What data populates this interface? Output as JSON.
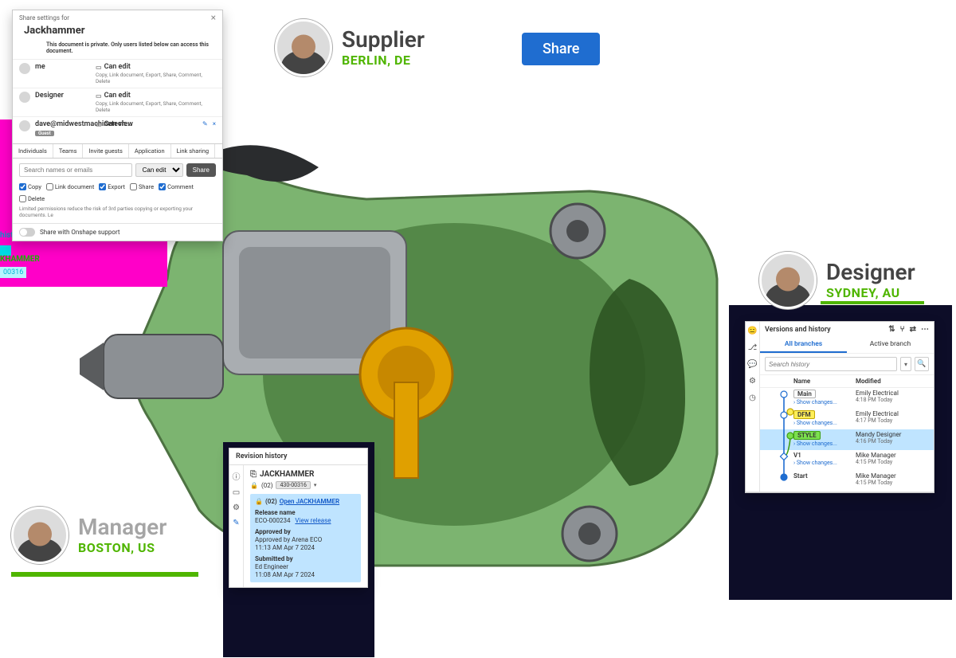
{
  "personas": {
    "supplier": {
      "role": "Supplier",
      "loc": "BERLIN, DE"
    },
    "designer": {
      "role": "Designer",
      "loc": "SYDNEY, AU"
    },
    "manager": {
      "role": "Manager",
      "loc": "BOSTON, US"
    }
  },
  "share_chip": "Share",
  "share_panel": {
    "header": "Share settings for",
    "title": "Jackhammer",
    "subtitle": "This document is private. Only users listed below can access this document.",
    "rows": [
      {
        "name": "me",
        "perm_head": "Can edit",
        "perm_detail": "Copy, Link document, Export, Share, Comment, Delete",
        "has_actions": false,
        "guest": false
      },
      {
        "name": "Designer",
        "perm_head": "Can edit",
        "perm_detail": "Copy, Link document, Export, Share, Comment, Delete",
        "has_actions": false,
        "guest": false
      },
      {
        "name": "dave@midwestmachinetech...",
        "perm_head": "Can view",
        "perm_detail": "",
        "has_actions": true,
        "guest": true
      }
    ],
    "tabs": [
      "Individuals",
      "Teams",
      "Invite guests",
      "Application",
      "Link sharing"
    ],
    "input_placeholder": "Search names or emails",
    "dropdown": "Can edit",
    "share_btn": "Share",
    "checks": [
      {
        "label": "Copy",
        "checked": true
      },
      {
        "label": "Link document",
        "checked": false
      },
      {
        "label": "Export",
        "checked": true
      },
      {
        "label": "Share",
        "checked": false
      },
      {
        "label": "Comment",
        "checked": true
      },
      {
        "label": "Delete",
        "checked": false
      }
    ],
    "note": "Limited permissions reduce the risk of 3rd parties copying or exporting your documents. Le",
    "footer": "Share with Onshape support"
  },
  "left_fragments": {
    "frag1": "history",
    "frag2": "KHAMMER",
    "frag3": "00316"
  },
  "revision": {
    "header": "Revision history",
    "part_name": "JACKHAMMER",
    "rev_prefix": "(02)",
    "rev_badge": "430-00316",
    "open_prefix": "(02)",
    "open_link": "Open JACKHAMMER",
    "release_name_label": "Release name",
    "release_name": "ECO-000234",
    "view_release": "View release",
    "approved_label": "Approved by",
    "approved_by": "Approved by Arena ECO",
    "approved_time": "11:13 AM Apr 7 2024",
    "submitted_label": "Submitted by",
    "submitted_by": "Ed Engineer",
    "submitted_time": "11:08 AM Apr 7 2024"
  },
  "versions": {
    "title": "Versions and history",
    "tabs": {
      "all": "All branches",
      "active": "Active branch"
    },
    "search_placeholder": "Search history",
    "head_name": "Name",
    "head_mod": "Modified",
    "show_changes": "Show changes...",
    "rows": [
      {
        "name": "Main",
        "cls": "boxed",
        "who": "Emily Electrical",
        "when": "4:18 PM Today",
        "hl": false
      },
      {
        "name": "DFM",
        "cls": "yellow",
        "who": "Emily Electrical",
        "when": "4:17 PM Today",
        "hl": false
      },
      {
        "name": "STYLE",
        "cls": "green",
        "who": "Mandy Designer",
        "when": "4:16 PM Today",
        "hl": true
      },
      {
        "name": "V1",
        "cls": "",
        "who": "Mike Manager",
        "when": "4:15 PM Today",
        "hl": false
      },
      {
        "name": "Start",
        "cls": "",
        "who": "Mike Manager",
        "when": "4:15 PM Today",
        "hl": false
      }
    ]
  },
  "colors": {
    "accent_blue": "#1f6dd0",
    "accent_green": "#4fb500",
    "magenta": "#ff00c8",
    "dark_navy": "#0d0d28",
    "model_green": "#3f8a2e",
    "model_grey": "#7a7f84",
    "model_orange": "#e0a000"
  }
}
